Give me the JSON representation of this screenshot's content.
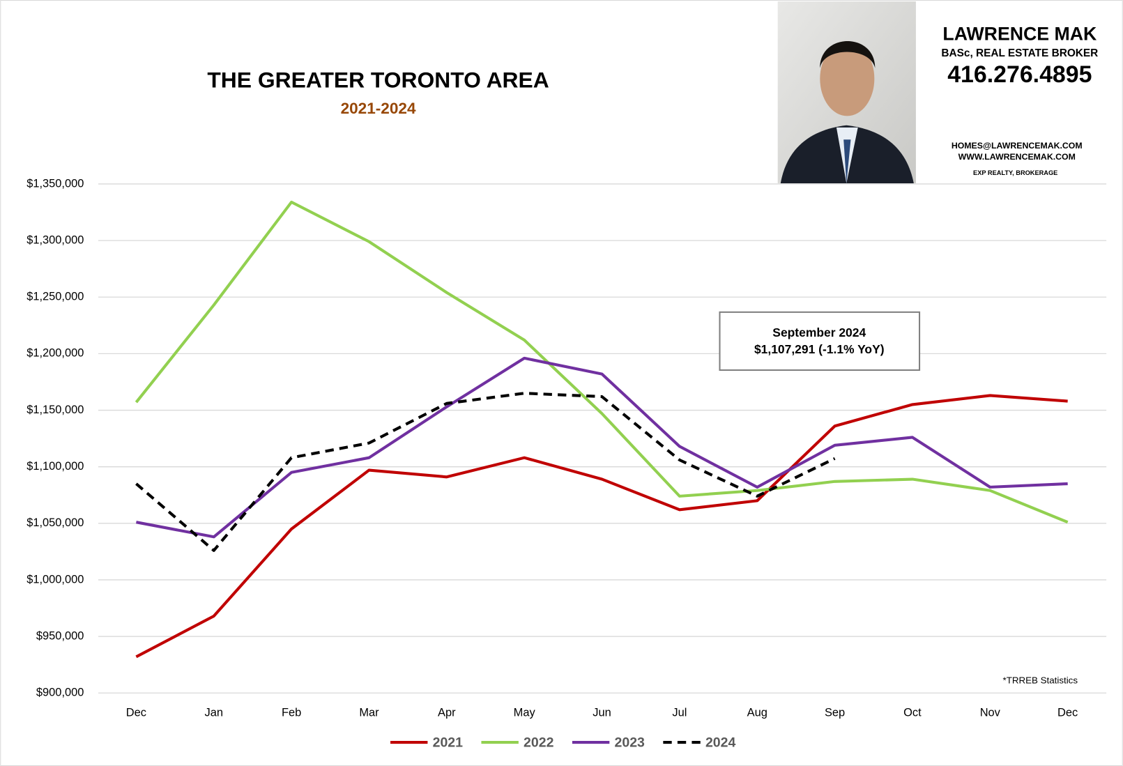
{
  "chart_data": {
    "type": "line",
    "title": "THE GREATER TORONTO AREA",
    "subtitle": "2021-2024",
    "annotation": {
      "line1": "September 2024",
      "line2": "$1,107,291 (-1.1% YoY)"
    },
    "source": "*TRREB Statistics",
    "contact": {
      "name": "LAWRENCE MAK",
      "credentials": "BASc, REAL ESTATE BROKER",
      "phone": "416.276.4895",
      "email": "HOMES@LAWRENCEMAK.COM",
      "website": "WWW.LAWRENCEMAK.COM",
      "brokerage": "EXP REALTY, BROKERAGE"
    },
    "categories": [
      "Dec",
      "Jan",
      "Feb",
      "Mar",
      "Apr",
      "May",
      "Jun",
      "Jul",
      "Aug",
      "Sep",
      "Oct",
      "Nov",
      "Dec"
    ],
    "series": [
      {
        "name": "2021",
        "color": "#c00000",
        "dashed": false,
        "values": [
          932000,
          968000,
          1045000,
          1097000,
          1091000,
          1108000,
          1089000,
          1062000,
          1070000,
          1136000,
          1155000,
          1163000,
          1158000
        ]
      },
      {
        "name": "2022",
        "color": "#92d050",
        "dashed": false,
        "values": [
          1157000,
          1243000,
          1334000,
          1299000,
          1254000,
          1212000,
          1147000,
          1074000,
          1079000,
          1087000,
          1089000,
          1079000,
          1051000
        ]
      },
      {
        "name": "2023",
        "color": "#7030a0",
        "dashed": false,
        "values": [
          1051000,
          1038000,
          1095000,
          1108000,
          1153000,
          1196000,
          1182000,
          1118000,
          1082000,
          1119000,
          1126000,
          1082000,
          1085000
        ]
      },
      {
        "name": "2024",
        "color": "#000000",
        "dashed": true,
        "values": [
          1085000,
          1026000,
          1108000,
          1121000,
          1156000,
          1165000,
          1162000,
          1106000,
          1074000,
          1107291,
          null,
          null,
          null
        ]
      }
    ],
    "ylim": [
      900000,
      1350000
    ],
    "yticks": [
      {
        "value": 900000,
        "label": "$900,000"
      },
      {
        "value": 950000,
        "label": "$950,000"
      },
      {
        "value": 1000000,
        "label": "$1,000,000"
      },
      {
        "value": 1050000,
        "label": "$1,050,000"
      },
      {
        "value": 1100000,
        "label": "$1,100,000"
      },
      {
        "value": 1150000,
        "label": "$1,150,000"
      },
      {
        "value": 1200000,
        "label": "$1,200,000"
      },
      {
        "value": 1250000,
        "label": "$1,250,000"
      },
      {
        "value": 1300000,
        "label": "$1,300,000"
      },
      {
        "value": 1350000,
        "label": "$1,350,000"
      }
    ],
    "grid": true,
    "legend": "bottom"
  }
}
